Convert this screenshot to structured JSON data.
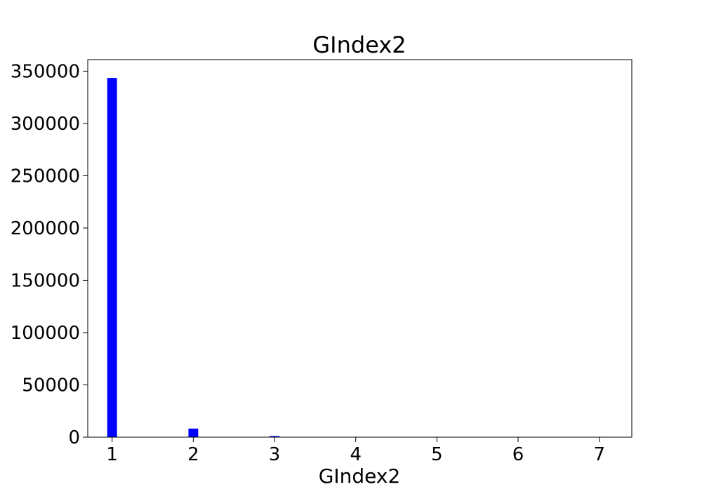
{
  "chart_data": {
    "type": "bar",
    "title": "GIndex2",
    "xlabel": "GIndex2",
    "ylabel": "",
    "x": [
      1,
      2,
      3,
      4,
      5,
      6,
      7
    ],
    "values": [
      343500,
      8200,
      1100,
      150,
      60,
      30,
      20
    ],
    "xlim": [
      0.7,
      7.4
    ],
    "ylim": [
      0,
      361000
    ],
    "xticks": [
      1,
      2,
      3,
      4,
      5,
      6,
      7
    ],
    "xtick_labels": [
      "1",
      "2",
      "3",
      "4",
      "5",
      "6",
      "7"
    ],
    "yticks": [
      0,
      50000,
      100000,
      150000,
      200000,
      250000,
      300000,
      350000
    ],
    "ytick_labels": [
      "0",
      "50000",
      "100000",
      "150000",
      "200000",
      "250000",
      "300000",
      "350000"
    ],
    "bar_width": 0.12,
    "bar_color": "#0000ff",
    "grid": false,
    "legend": "none"
  }
}
